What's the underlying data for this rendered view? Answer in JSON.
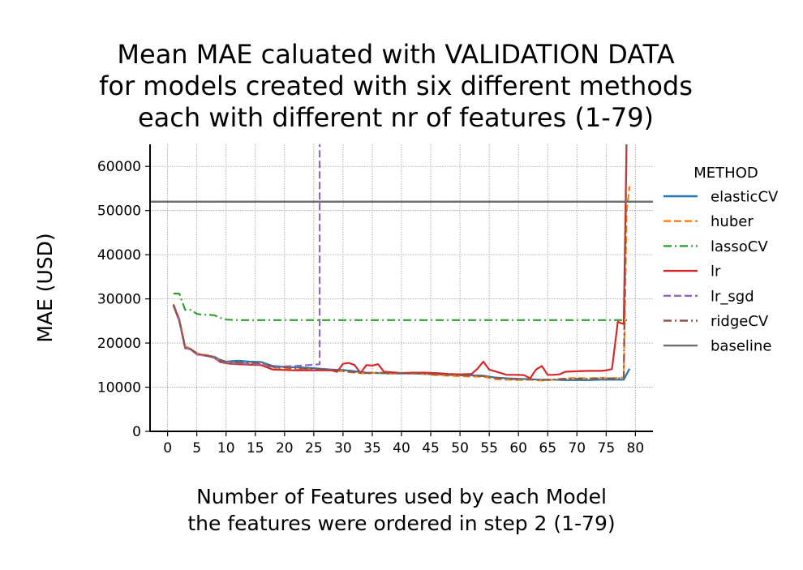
{
  "chart_data": {
    "type": "line",
    "title_lines": [
      "Mean MAE caluated with VALIDATION DATA",
      "for models created with six different methods",
      "each with different nr of features (1-79)"
    ],
    "xlabel_lines": [
      "Number of Features used by each Model",
      "the features were ordered in step 2 (1-79)"
    ],
    "ylabel": "MAE (USD)",
    "xlim": [
      -3,
      83
    ],
    "ylim": [
      0,
      65000
    ],
    "xticks": [
      0,
      5,
      10,
      15,
      20,
      25,
      30,
      35,
      40,
      45,
      50,
      55,
      60,
      65,
      70,
      75,
      80
    ],
    "yticks": [
      0,
      10000,
      20000,
      30000,
      40000,
      50000,
      60000
    ],
    "grid": true,
    "legend_title": "METHOD",
    "legend_placement": "outside right",
    "series": [
      {
        "name": "elasticCV",
        "color": "#1f77b4",
        "style": "solid",
        "x": [
          1,
          2,
          3,
          4,
          5,
          6,
          7,
          8,
          9,
          10,
          12,
          14,
          16,
          18,
          20,
          22,
          24,
          26,
          28,
          30,
          32,
          34,
          36,
          38,
          40,
          42,
          44,
          46,
          48,
          50,
          52,
          54,
          56,
          58,
          60,
          62,
          64,
          66,
          68,
          70,
          72,
          74,
          76,
          78,
          79
        ],
        "y": [
          28500,
          25000,
          19000,
          18500,
          17500,
          17300,
          17100,
          16900,
          16200,
          15800,
          16000,
          15800,
          15700,
          14800,
          14600,
          14500,
          14400,
          14200,
          14000,
          13900,
          13600,
          13300,
          13200,
          13100,
          13100,
          13100,
          13000,
          12900,
          12800,
          12700,
          12700,
          12600,
          12200,
          12000,
          11900,
          11800,
          11700,
          11700,
          11600,
          11600,
          11600,
          11700,
          11700,
          11700,
          14200
        ]
      },
      {
        "name": "huber",
        "color": "#ff7f0e",
        "style": "dashed",
        "x": [
          1,
          2,
          3,
          4,
          5,
          6,
          7,
          8,
          9,
          10,
          12,
          14,
          16,
          18,
          20,
          22,
          24,
          26,
          28,
          30,
          32,
          34,
          36,
          38,
          40,
          42,
          44,
          46,
          48,
          50,
          52,
          54,
          56,
          58,
          60,
          62,
          64,
          66,
          68,
          70,
          72,
          74,
          76,
          77,
          78,
          78.5,
          79
        ],
        "y": [
          28800,
          25500,
          19200,
          18700,
          17700,
          17400,
          17200,
          16800,
          16000,
          15600,
          15500,
          15300,
          15400,
          14400,
          14300,
          14000,
          14000,
          13900,
          13800,
          13600,
          13300,
          13100,
          13300,
          13100,
          13200,
          13100,
          13000,
          12700,
          12600,
          12500,
          12400,
          12400,
          11800,
          11700,
          11600,
          11700,
          11500,
          11700,
          12000,
          12100,
          12000,
          12100,
          12000,
          12100,
          12200,
          50000,
          55500
        ]
      },
      {
        "name": "lassoCV",
        "color": "#2ca02c",
        "style": "dashdot",
        "x": [
          1,
          2,
          3,
          4,
          5,
          6,
          7,
          8,
          9,
          10,
          12,
          15,
          20,
          25,
          30,
          35,
          40,
          45,
          50,
          55,
          60,
          65,
          70,
          75,
          78,
          79
        ],
        "y": [
          31200,
          31200,
          27500,
          27500,
          26600,
          26400,
          26400,
          26300,
          25700,
          25300,
          25200,
          25200,
          25200,
          25200,
          25200,
          25200,
          25200,
          25200,
          25200,
          25200,
          25200,
          25200,
          25200,
          25200,
          25200,
          25200
        ]
      },
      {
        "name": "lr",
        "color": "#d62728",
        "style": "solid",
        "x": [
          1,
          2,
          3,
          4,
          5,
          6,
          7,
          8,
          9,
          10,
          12,
          14,
          16,
          18,
          20,
          22,
          24,
          26,
          28,
          29,
          30,
          31,
          32,
          33,
          34,
          35,
          36,
          37,
          38,
          40,
          42,
          44,
          46,
          48,
          50,
          52,
          53,
          54,
          55,
          56,
          58,
          60,
          61,
          62,
          63,
          64,
          65,
          66,
          67,
          68,
          70,
          72,
          74,
          75,
          76,
          77,
          78,
          78.5
        ],
        "y": [
          28700,
          25200,
          18800,
          18600,
          17400,
          17300,
          17000,
          16700,
          15700,
          15400,
          15200,
          15100,
          15000,
          14000,
          13900,
          13800,
          13800,
          13800,
          13800,
          13500,
          15300,
          15500,
          15000,
          13200,
          15000,
          14900,
          15200,
          13500,
          13400,
          13200,
          13300,
          13300,
          13200,
          13000,
          12900,
          13000,
          14200,
          15800,
          14000,
          13600,
          12800,
          12800,
          12700,
          12000,
          14000,
          14800,
          12800,
          12800,
          12900,
          13500,
          13600,
          13700,
          13700,
          13800,
          14100,
          24800,
          24300,
          67000
        ]
      },
      {
        "name": "lr_sgd",
        "color": "#9467bd",
        "style": "dashed",
        "x": [
          1,
          2,
          3,
          4,
          5,
          6,
          7,
          8,
          9,
          10,
          12,
          14,
          16,
          18,
          20,
          22,
          24,
          25,
          26,
          26.001
        ],
        "y": [
          28600,
          25100,
          18900,
          18500,
          17400,
          17200,
          17000,
          16600,
          15800,
          15500,
          15400,
          15300,
          15200,
          14400,
          14700,
          14800,
          15000,
          15100,
          15200,
          67000
        ]
      },
      {
        "name": "ridgeCV",
        "color": "#8c564b",
        "style": "dashdot",
        "x": [
          1,
          2,
          3,
          4,
          5,
          6,
          7,
          8,
          9,
          10,
          12,
          14,
          16,
          18,
          20,
          22,
          24,
          26,
          28,
          30,
          32,
          34,
          36,
          38,
          40,
          42,
          44,
          46,
          48,
          50,
          52,
          54,
          56,
          58,
          60,
          62,
          64,
          66,
          68,
          70,
          72,
          74,
          76,
          78,
          78.5
        ],
        "y": [
          28600,
          25100,
          19000,
          18600,
          17600,
          17300,
          17100,
          16800,
          16000,
          15700,
          15600,
          15500,
          15500,
          14600,
          14500,
          14300,
          14200,
          14100,
          14000,
          13700,
          13400,
          13200,
          13300,
          13200,
          13200,
          13200,
          13000,
          12900,
          12800,
          12700,
          12600,
          12500,
          12100,
          11900,
          11800,
          11800,
          11600,
          11700,
          11900,
          11900,
          11900,
          12000,
          12000,
          12000,
          67000
        ]
      },
      {
        "name": "baseline",
        "color": "#707070",
        "style": "solid",
        "x": [
          -3,
          83
        ],
        "y": [
          52000,
          52000
        ]
      }
    ]
  }
}
